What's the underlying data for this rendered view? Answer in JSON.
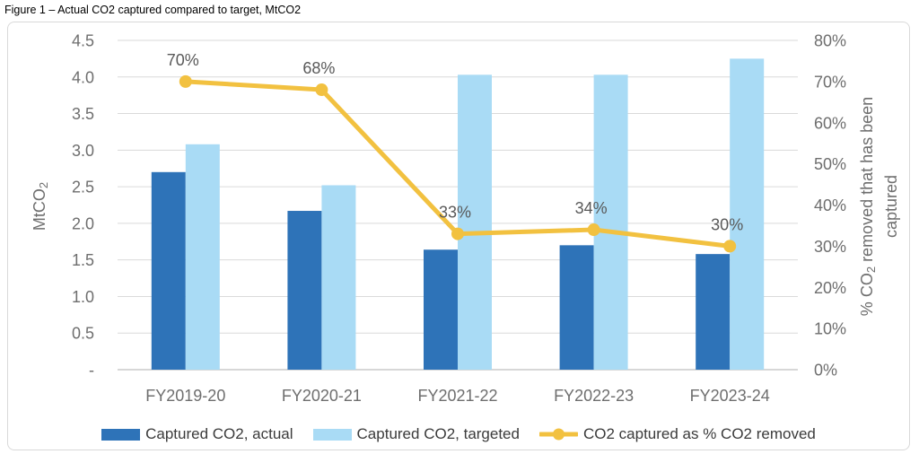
{
  "figure_title": "Figure 1 – Actual CO2 captured compared to target, MtCO2",
  "chart_data": {
    "type": "combo-bar-line",
    "categories": [
      "FY2019-20",
      "FY2020-21",
      "FY2021-22",
      "FY2022-23",
      "FY2023-24"
    ],
    "series": [
      {
        "name": "Captured CO2, actual",
        "type": "bar",
        "axis": "left",
        "color": "#2E73B8",
        "values": [
          2.7,
          2.17,
          1.64,
          1.7,
          1.58
        ]
      },
      {
        "name": "Captured CO2, targeted",
        "type": "bar",
        "axis": "left",
        "color": "#A9DBF5",
        "values": [
          3.08,
          2.52,
          4.03,
          4.03,
          4.25
        ]
      },
      {
        "name": "CO2 captured as % CO2 removed",
        "type": "line",
        "axis": "right",
        "color": "#F2C140",
        "values": [
          70,
          68,
          33,
          34,
          30
        ],
        "data_labels": [
          "70%",
          "68%",
          "33%",
          "34%",
          "30%"
        ]
      }
    ],
    "left_axis": {
      "title": {
        "main": "MtCO",
        "sub": "2"
      },
      "ticks": [
        "4.5",
        "4.0",
        "3.5",
        "3.0",
        "2.5",
        "2.0",
        "1.5",
        "1.0",
        "0.5",
        "-"
      ],
      "min": 0,
      "max": 4.5
    },
    "right_axis": {
      "title": {
        "pre": "% CO",
        "sub": "2",
        "post": " removed that has been",
        "line2": "captured"
      },
      "ticks": [
        "80%",
        "70%",
        "60%",
        "50%",
        "40%",
        "30%",
        "20%",
        "10%",
        "0%"
      ],
      "min": 0,
      "max": 80
    },
    "grid": true,
    "legend_position": "bottom",
    "colors": {
      "gridline": "#dadada",
      "axis_line": "#bfbfbf",
      "tick_text": "#6e6e6e",
      "data_label": "#595959",
      "card_border": "#d9d9d9"
    }
  }
}
